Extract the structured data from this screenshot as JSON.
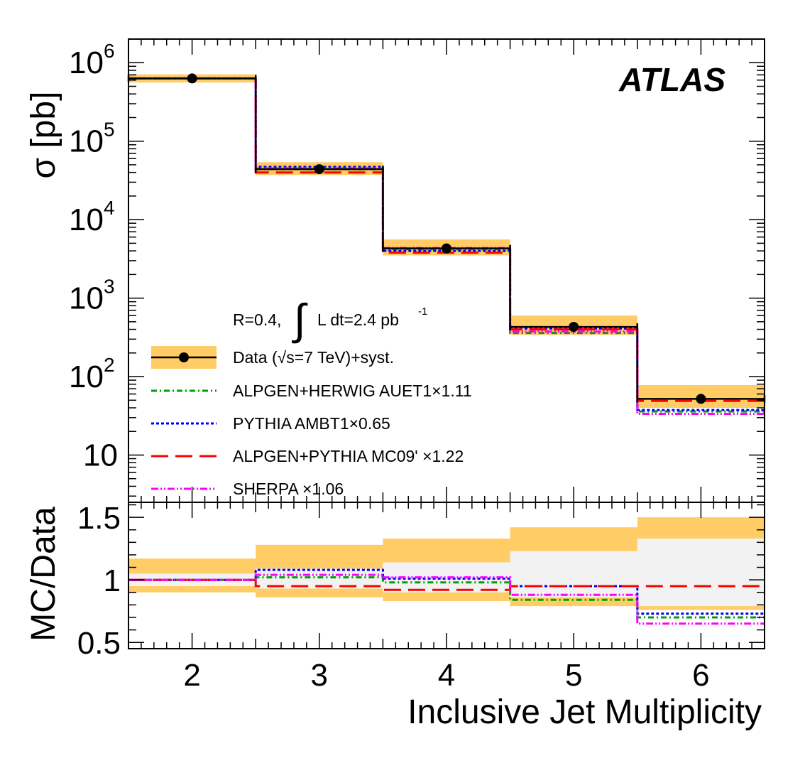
{
  "chart_data": [
    {
      "type": "step",
      "panel": "main",
      "title": "",
      "label": "ATLAS",
      "xlabel": "Inclusive Jet Multiplicity",
      "ylabel": "σ [pb]",
      "yscale": "log",
      "xlim": [
        1.5,
        6.5
      ],
      "ylim": [
        2.5,
        2000000
      ],
      "x_ticks": [
        2,
        3,
        4,
        5,
        6
      ],
      "x_tick_labels": [
        "2",
        "3",
        "4",
        "5",
        "6"
      ],
      "y_tick_labels": [
        {
          "value": 10,
          "base": "10",
          "exp": ""
        },
        {
          "value": 100,
          "base": "10",
          "exp": "2"
        },
        {
          "value": 1000,
          "base": "10",
          "exp": "3"
        },
        {
          "value": 10000,
          "base": "10",
          "exp": "4"
        },
        {
          "value": 100000,
          "base": "10",
          "exp": "5"
        },
        {
          "value": 1000000,
          "base": "10",
          "exp": "6"
        }
      ],
      "annotation": {
        "prefix": "R=0.4,",
        "integral": "∫",
        "text": "L dt=2.4 pb",
        "sup": "-1"
      },
      "data": {
        "name": "Data (√s=7 TeV)+syst.",
        "x": [
          2,
          3,
          4,
          5,
          6
        ],
        "y": [
          630000,
          44000,
          4300,
          430,
          52
        ],
        "band_low": [
          560000,
          37000,
          3500,
          340,
          40
        ],
        "band_high": [
          710000,
          54000,
          5600,
          600,
          78
        ]
      },
      "series": [
        {
          "name": "ALPGEN+HERWIG AUET1×1.11",
          "color": "#00a000",
          "dash": "8 4 2 4",
          "values": [
            630000,
            44000,
            4200,
            360,
            36
          ]
        },
        {
          "name": "PYTHIA AMBT1×0.65",
          "color": "#0000ff",
          "dash": "4 3",
          "values": [
            630000,
            47000,
            4000,
            410,
            37.5
          ]
        },
        {
          "name": "ALPGEN+PYTHIA MC09' ×1.22",
          "color": "#ff0000",
          "dash": "24 10",
          "values": [
            630000,
            40000,
            3800,
            400,
            49
          ]
        },
        {
          "name": "SHERPA ×1.06",
          "color": "#ff00ff",
          "dash": "10 3 2 3 2 3",
          "values": [
            630000,
            45000,
            4350,
            375,
            33.5
          ]
        }
      ]
    },
    {
      "type": "step",
      "panel": "ratio",
      "ylabel": "MC/Data",
      "xlabel": "Inclusive Jet Multiplicity",
      "xlim": [
        1.5,
        6.5
      ],
      "ylim": [
        0.45,
        1.62
      ],
      "y_ticks": [
        0.5,
        1,
        1.5
      ],
      "y_tick_labels": [
        "0.5",
        "1",
        "1.5"
      ],
      "syst_band": {
        "low": [
          0.9,
          0.86,
          0.83,
          0.79,
          0.76
        ],
        "high": [
          1.17,
          1.28,
          1.33,
          1.42,
          1.5
        ]
      },
      "inner_band": {
        "low": [
          0.95,
          0.93,
          0.9,
          0.86,
          0.79
        ],
        "high": [
          1.05,
          1.09,
          1.14,
          1.23,
          1.33
        ]
      },
      "series": [
        {
          "name": "ALPGEN+HERWIG AUET1×1.11",
          "color": "#00a000",
          "dash": "8 4 2 4",
          "values": [
            1.0,
            1.02,
            0.98,
            0.84,
            0.7
          ]
        },
        {
          "name": "PYTHIA AMBT1×0.65",
          "color": "#0000ff",
          "dash": "4 3",
          "values": [
            1.0,
            1.08,
            1.01,
            0.95,
            0.73
          ]
        },
        {
          "name": "ALPGEN+PYTHIA MC09' ×1.22",
          "color": "#ff0000",
          "dash": "24 10",
          "values": [
            1.0,
            0.95,
            0.92,
            0.95,
            0.95
          ]
        },
        {
          "name": "SHERPA ×1.06",
          "color": "#ff00ff",
          "dash": "10 3 2 3 2 3",
          "values": [
            1.0,
            1.04,
            1.02,
            0.88,
            0.65
          ]
        }
      ]
    }
  ],
  "colors": {
    "band": "#ffcc66",
    "inner_band": "#f2f2f2",
    "data": "#000000"
  }
}
